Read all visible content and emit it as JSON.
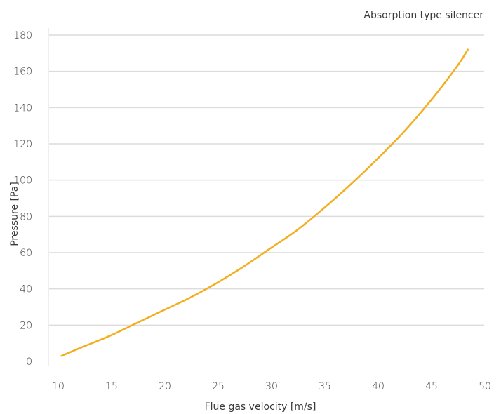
{
  "chart_data": {
    "type": "line",
    "title": "Absorption type silencer",
    "xlabel": "Flue gas velocity [m/s]",
    "ylabel": "Pressure [Pa]",
    "xlim": [
      10,
      50
    ],
    "ylim": [
      0,
      180
    ],
    "x_ticks": [
      "10",
      "15",
      "20",
      "25",
      "30",
      "35",
      "40",
      "45",
      "50"
    ],
    "y_ticks": [
      "0",
      "20",
      "40",
      "60",
      "80",
      "100",
      "120",
      "140",
      "160",
      "180"
    ],
    "grid": "horizontal",
    "legend": "none",
    "line_color": "#f3ae1d",
    "grid_color": "#dcdcdc",
    "series": [
      {
        "x": [
          10.5,
          12.5,
          15,
          17.5,
          20,
          22.5,
          25,
          27.5,
          30,
          32.5,
          35,
          37.5,
          40,
          42.5,
          45,
          47.5,
          48.6
        ],
        "y": [
          3,
          8,
          14,
          21,
          28,
          35,
          43,
          52,
          62,
          72,
          84,
          97,
          111,
          126,
          143,
          162,
          172
        ]
      }
    ]
  }
}
